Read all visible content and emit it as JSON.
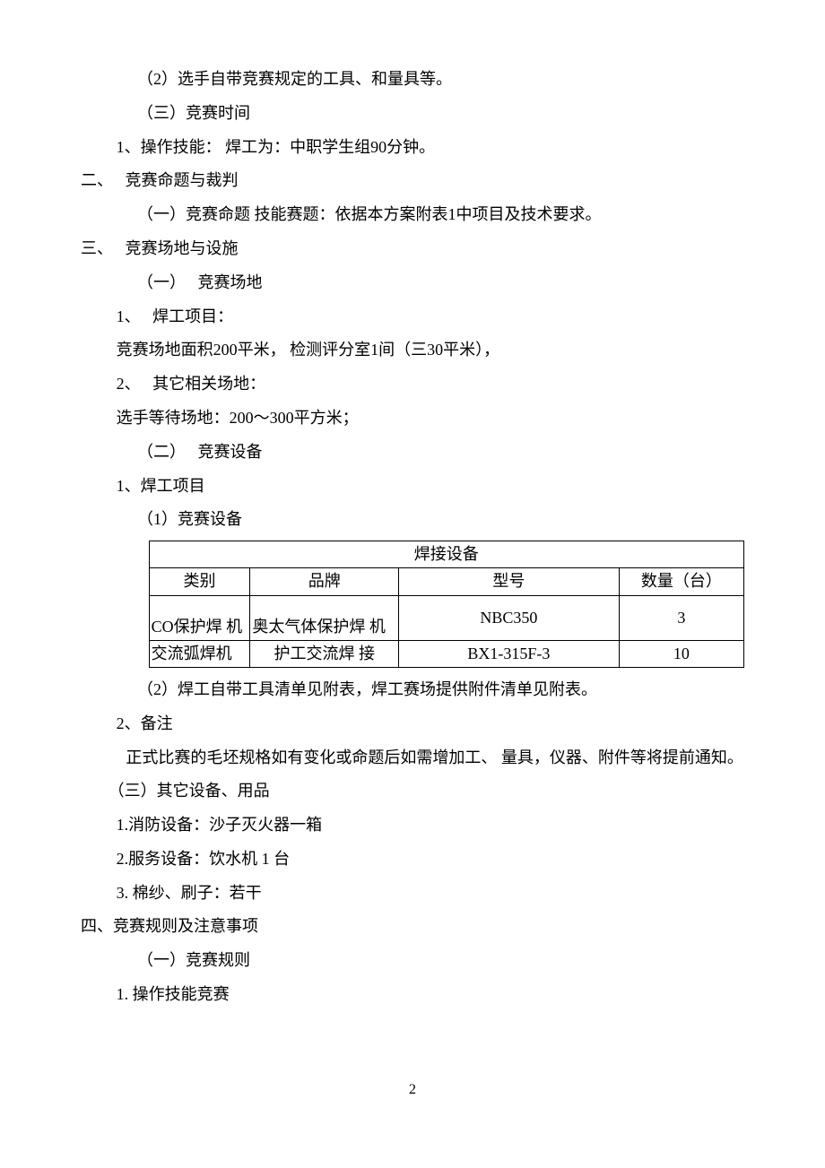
{
  "p1": "（2）选手自带竞赛规定的工具、和量具等。",
  "p2": "（三）竞赛时间",
  "p3": "1、操作技能： 焊工为：中职学生组90分钟。",
  "sec2": "二、　 竞赛命题与裁判",
  "p4": "（一）竞赛命题 技能赛题：依据本方案附表1中项目及技术要求。",
  "sec3": "三、　 竞赛场地与设施",
  "p5": "（一）　 竞赛场地",
  "p6": "1、　 焊工项目：",
  "p7": "竞赛场地面积200平米， 检测评分室1间（三30平米），",
  "p8": "2、　 其它相关场地：",
  "p9": "选手等待场地：200～300平方米；",
  "p10": "（二）　 竞赛设备",
  "p11": "1、焊工项目",
  "p12": "（1）竞赛设备",
  "table": {
    "title": "焊接设备",
    "headers": {
      "c1": "类别",
      "c2": "品牌",
      "c3": "型号",
      "c4": "数量（台）"
    },
    "rows": [
      {
        "c1": "CO保护焊  机",
        "c2": "奥太气体保护焊  机",
        "c3": "NBC350",
        "c4": "3"
      },
      {
        "c1": "交流弧焊机",
        "c2": "护工交流焊  接",
        "c3": "BX1-315F-3",
        "c4": "10"
      }
    ]
  },
  "p13": "（2）焊工自带工具清单见附表，焊工赛场提供附件清单见附表。",
  "p14": "2、备注",
  "p15": "正式比赛的毛坯规格如有变化或命题后如需增加工、 量具，仪器、附件等将提前通知。",
  "p16": "（三）其它设备、用品",
  "p17": "1.消防设备：沙子灭火器一箱",
  "p18": "2.服务设备：饮水机 1 台",
  "p19": "3. 棉纱、刷子：若干",
  "sec4": "四、竞赛规则及注意事项",
  "p20": "（一）竞赛规则",
  "p21": "1. 操作技能竞赛",
  "pageNumber": "2"
}
